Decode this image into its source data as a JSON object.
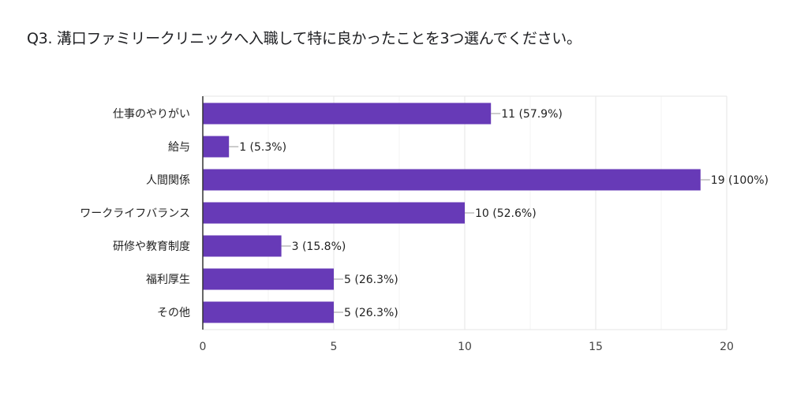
{
  "chart_data": {
    "type": "bar",
    "orientation": "horizontal",
    "title": "Q3. 溝口ファミリークリニックへ入職して特に良かったことを3つ選んでください。",
    "categories": [
      "仕事のやりがい",
      "給与",
      "人間関係",
      "ワークライフバランス",
      "研修や教育制度",
      "福利厚生",
      "その他"
    ],
    "values": [
      11,
      1,
      19,
      10,
      3,
      5,
      5
    ],
    "data_labels": [
      "11 (57.9%)",
      "1 (5.3%)",
      "19 (100%)",
      "10 (52.6%)",
      "3 (15.8%)",
      "5 (26.3%)",
      "5 (26.3%)"
    ],
    "xlim": [
      0,
      20
    ],
    "x_ticks": [
      "0",
      "5",
      "10",
      "15",
      "20"
    ],
    "grid": true,
    "xlabel": "",
    "ylabel": "",
    "bar_color": "#673ab7"
  }
}
